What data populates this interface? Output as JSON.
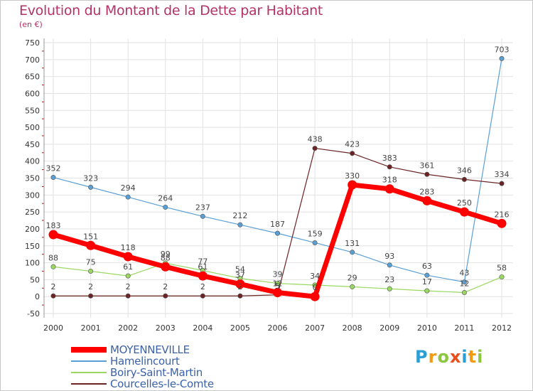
{
  "header": {
    "title": "Evolution du Montant de la Dette par Habitant",
    "subtitle": "(en €)"
  },
  "colors": {
    "title": "#b43266",
    "legend_text": "#3b62a8",
    "grid": "#e2e2e2",
    "axis_tick_red": "#cc0000"
  },
  "chart_data": {
    "type": "line",
    "x": [
      "2000",
      "2001",
      "2002",
      "2003",
      "2004",
      "2005",
      "2006",
      "2007",
      "2008",
      "2009",
      "2010",
      "2011",
      "2012"
    ],
    "ylim": [
      -50,
      750
    ],
    "yticks": [
      -50,
      0,
      50,
      100,
      150,
      200,
      250,
      300,
      350,
      400,
      450,
      500,
      550,
      600,
      650,
      700,
      750
    ],
    "grid": true,
    "legend_position": "bottom-left",
    "series": [
      {
        "name": "MOYENNEVILLE",
        "color": "#ff0000",
        "highlight": true,
        "values": [
          183,
          151,
          118,
          88,
          61,
          37,
          12,
          0,
          330,
          318,
          283,
          250,
          216
        ],
        "labels": [
          "183",
          "151",
          "118",
          "88",
          "61",
          "37",
          "12",
          "0",
          "330",
          "318",
          "283",
          "250",
          "216"
        ]
      },
      {
        "name": "Hamelincourt",
        "color": "#5a9fd4",
        "highlight": false,
        "values": [
          352,
          323,
          294,
          264,
          237,
          212,
          187,
          159,
          131,
          93,
          63,
          43,
          703
        ],
        "labels": [
          "352",
          "323",
          "294",
          "264",
          "237",
          "212",
          "187",
          "159",
          "131",
          "93",
          "63",
          "43",
          "703"
        ]
      },
      {
        "name": "Boiry-Saint-Martin",
        "color": "#9ad863",
        "highlight": false,
        "values": [
          88,
          75,
          61,
          99,
          77,
          54,
          39,
          34,
          29,
          23,
          17,
          12,
          58
        ],
        "labels": [
          "88",
          "75",
          "61",
          "99",
          "77",
          "54",
          "39",
          "34",
          "29",
          "23",
          "17",
          "12",
          "58"
        ]
      },
      {
        "name": "Courcelles-le-Comte",
        "color": "#6b2323",
        "highlight": false,
        "values": [
          2,
          2,
          2,
          2,
          2,
          2,
          5,
          438,
          423,
          383,
          361,
          346,
          334
        ],
        "labels": [
          "2",
          "2",
          "2",
          "2",
          "2",
          "2",
          "5",
          "438",
          "423",
          "383",
          "361",
          "346",
          "334"
        ]
      }
    ]
  },
  "logo": {
    "letters": [
      "P",
      "r",
      "o",
      "x",
      "i",
      "t",
      "i"
    ],
    "colors": [
      "#2a9fd6",
      "#f39c12",
      "#8cc63f",
      "#e94e1b",
      "#2a9fd6",
      "#f39c12",
      "#8cc63f"
    ]
  }
}
